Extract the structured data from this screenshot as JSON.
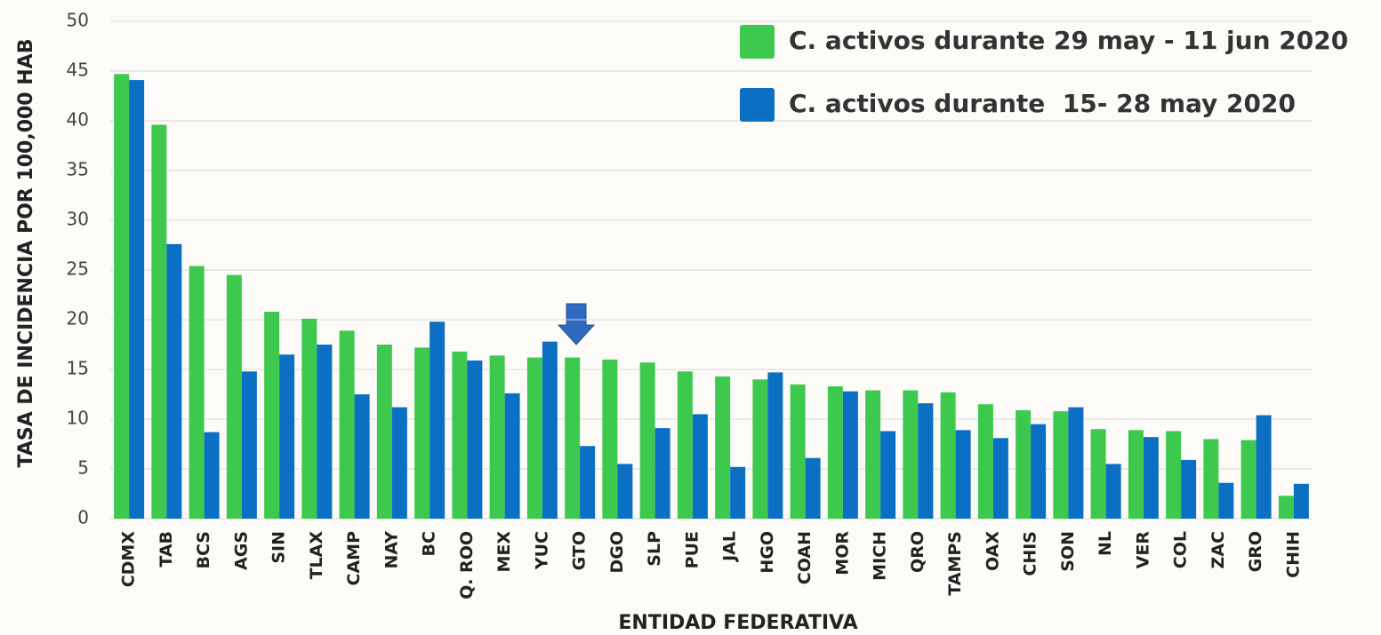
{
  "chart_data": {
    "type": "bar",
    "x_label": "ENTIDAD FEDERATIVA",
    "y_label": "TASA DE INCIDENCIA  POR 100,000 HAB",
    "categories": [
      "CDMX",
      "TAB",
      "BCS",
      "AGS",
      "SIN",
      "TLAX",
      "CAMP",
      "NAY",
      "BC",
      "Q. ROO",
      "MEX",
      "YUC",
      "GTO",
      "DGO",
      "SLP",
      "PUE",
      "JAL",
      "HGO",
      "COAH",
      "MOR",
      "MICH",
      "QRO",
      "TAMPS",
      "OAX",
      "CHIS",
      "SON",
      "NL",
      "VER",
      "COL",
      "ZAC",
      "GRO",
      "CHIH"
    ],
    "series": [
      {
        "name": "C. activos durante 29 may - 11 jun 2020",
        "color": "#3dc94e",
        "values": [
          44.7,
          39.6,
          25.4,
          24.5,
          20.8,
          20.1,
          18.9,
          17.5,
          17.2,
          16.8,
          16.4,
          16.2,
          16.2,
          16.0,
          15.7,
          14.8,
          14.3,
          14.0,
          13.5,
          13.3,
          12.9,
          12.9,
          12.7,
          11.5,
          10.9,
          10.8,
          9.0,
          8.9,
          8.8,
          8.0,
          7.9,
          2.3
        ]
      },
      {
        "name": "C. activos durante  15- 28 may 2020",
        "color": "#0b6fc4",
        "values": [
          44.1,
          27.6,
          8.7,
          14.8,
          16.5,
          17.5,
          12.5,
          11.2,
          19.8,
          15.9,
          12.6,
          17.8,
          7.3,
          5.5,
          9.1,
          10.5,
          5.2,
          14.7,
          6.1,
          12.8,
          8.8,
          11.6,
          8.9,
          8.1,
          9.5,
          11.2,
          5.5,
          8.2,
          5.9,
          3.6,
          10.4,
          3.5
        ]
      }
    ],
    "ylim": [
      0,
      50
    ],
    "yticks": [
      0,
      5,
      10,
      15,
      20,
      25,
      30,
      35,
      40,
      45,
      50
    ],
    "grid": true
  }
}
